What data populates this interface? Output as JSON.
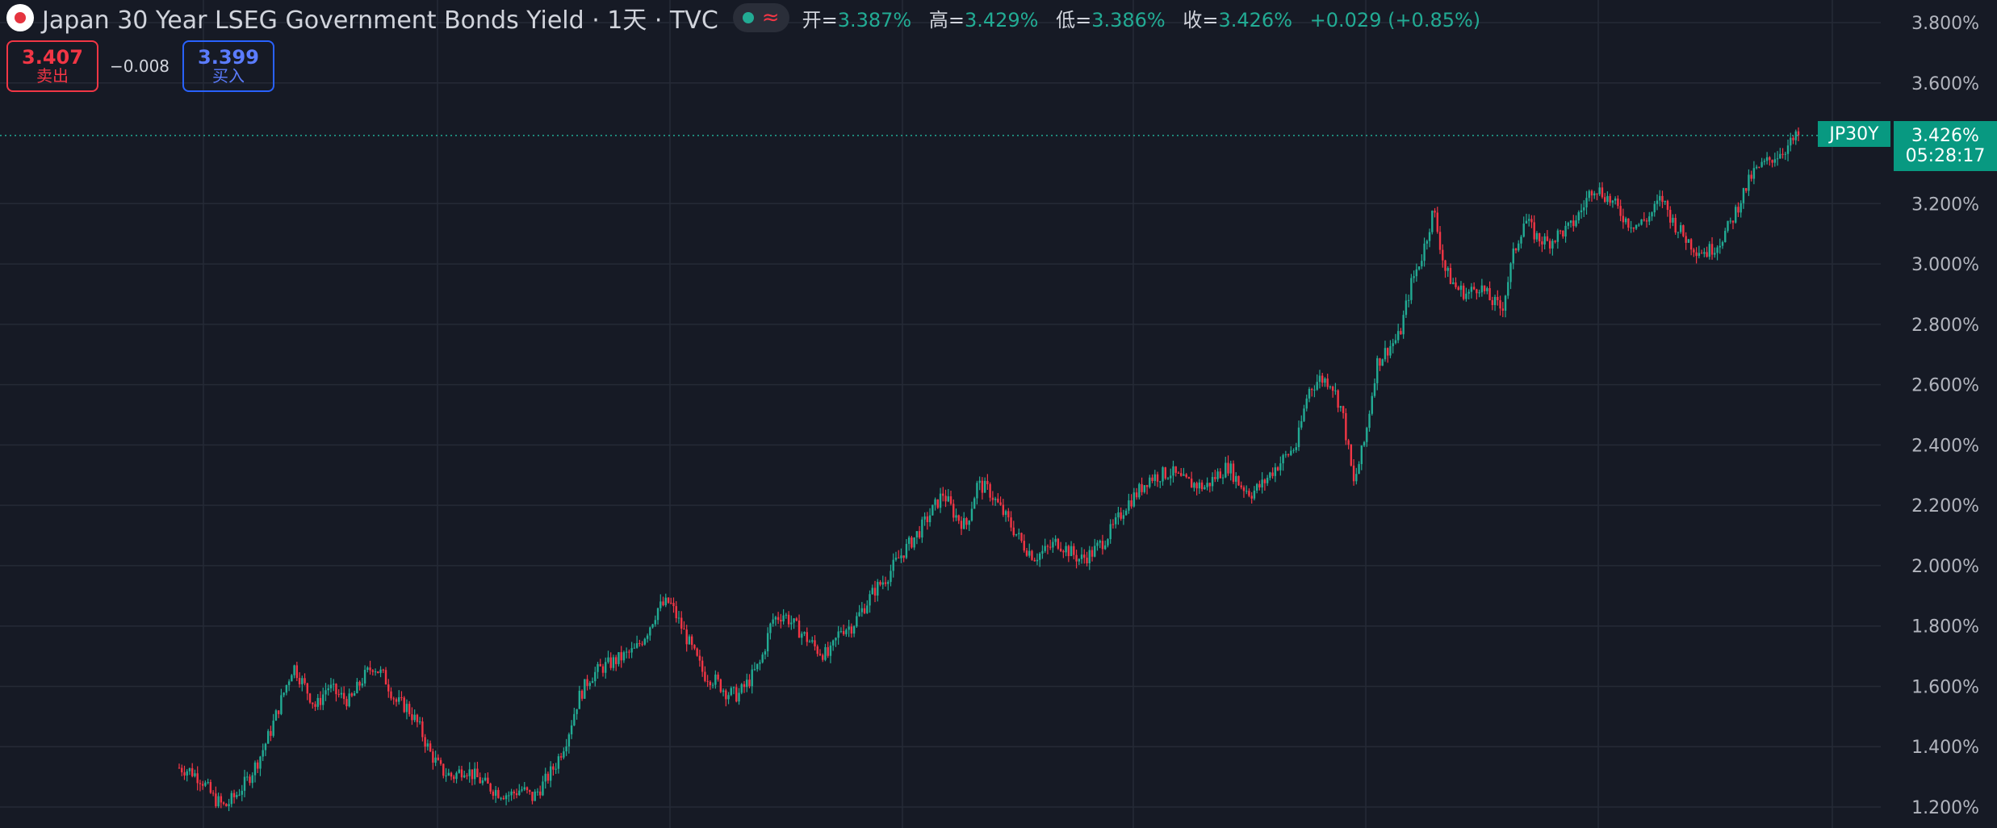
{
  "header": {
    "title": "Japan 30 Year LSEG Government Bonds Yield · 1天 · TVC",
    "open_label": "开=",
    "open": "3.387%",
    "high_label": "高=",
    "high": "3.429%",
    "low_label": "低=",
    "low": "3.386%",
    "close_label": "收=",
    "close": "3.426%",
    "change": "+0.029 (+0.85%)"
  },
  "trade": {
    "sell_price": "3.407",
    "sell_label": "卖出",
    "spread": "−0.008",
    "buy_price": "3.399",
    "buy_label": "买入"
  },
  "last_price": {
    "symbol": "JP30Y",
    "value": "3.426%",
    "countdown": "05:28:17"
  },
  "colors": {
    "background": "#161a25",
    "grid": "#252a36",
    "up": "#22ab94",
    "down": "#f23645",
    "axis_text": "#b2b5be"
  },
  "chart_data": {
    "type": "line",
    "style": "candlestick",
    "ylabel": "",
    "xlabel": "",
    "y_unit": "%",
    "ylim": [
      1.2,
      3.8
    ],
    "y_ticks": [
      {
        "value": 3.8,
        "label": "3.800%"
      },
      {
        "value": 3.6,
        "label": "3.600%"
      },
      {
        "value": 3.2,
        "label": "3.200%"
      },
      {
        "value": 3.0,
        "label": "3.000%"
      },
      {
        "value": 2.8,
        "label": "2.800%"
      },
      {
        "value": 2.6,
        "label": "2.600%"
      },
      {
        "value": 2.4,
        "label": "2.400%"
      },
      {
        "value": 2.2,
        "label": "2.200%"
      },
      {
        "value": 2.0,
        "label": "2.000%"
      },
      {
        "value": 1.8,
        "label": "1.800%"
      },
      {
        "value": 1.6,
        "label": "1.600%"
      },
      {
        "value": 1.4,
        "label": "1.400%"
      },
      {
        "value": 1.2,
        "label": "1.200%"
      }
    ],
    "grid": true,
    "last_value": 3.426,
    "series": [
      {
        "values": [
          1.33,
          1.32,
          1.29,
          1.23,
          1.2,
          1.24,
          1.29,
          1.36,
          1.45,
          1.56,
          1.67,
          1.6,
          1.53,
          1.6,
          1.57,
          1.55,
          1.62,
          1.67,
          1.63,
          1.55,
          1.53,
          1.47,
          1.38,
          1.32,
          1.3,
          1.33,
          1.3,
          1.27,
          1.25,
          1.24,
          1.26,
          1.23,
          1.28,
          1.34,
          1.43,
          1.56,
          1.63,
          1.66,
          1.68,
          1.7,
          1.72,
          1.78,
          1.86,
          1.88,
          1.8,
          1.72,
          1.64,
          1.62,
          1.58,
          1.57,
          1.62,
          1.68,
          1.82,
          1.84,
          1.8,
          1.76,
          1.72,
          1.7,
          1.79,
          1.8,
          1.86,
          1.92,
          1.96,
          2.02,
          2.07,
          2.12,
          2.18,
          2.24,
          2.17,
          2.13,
          2.27,
          2.25,
          2.19,
          2.13,
          2.07,
          2.03,
          2.05,
          2.08,
          2.05,
          2.02,
          2.04,
          2.08,
          2.13,
          2.2,
          2.24,
          2.29,
          2.3,
          2.31,
          2.28,
          2.27,
          2.26,
          2.3,
          2.33,
          2.27,
          2.24,
          2.27,
          2.32,
          2.36,
          2.4,
          2.58,
          2.62,
          2.61,
          2.51,
          2.27,
          2.42,
          2.67,
          2.72,
          2.76,
          2.93,
          3.03,
          3.18,
          2.98,
          2.92,
          2.9,
          2.93,
          2.88,
          2.85,
          3.03,
          3.15,
          3.09,
          3.07,
          3.1,
          3.12,
          3.18,
          3.26,
          3.23,
          3.19,
          3.14,
          3.13,
          3.16,
          3.22,
          3.14,
          3.09,
          3.05,
          3.04,
          3.07,
          3.13,
          3.22,
          3.3,
          3.33,
          3.36,
          3.387,
          3.426
        ]
      }
    ]
  }
}
